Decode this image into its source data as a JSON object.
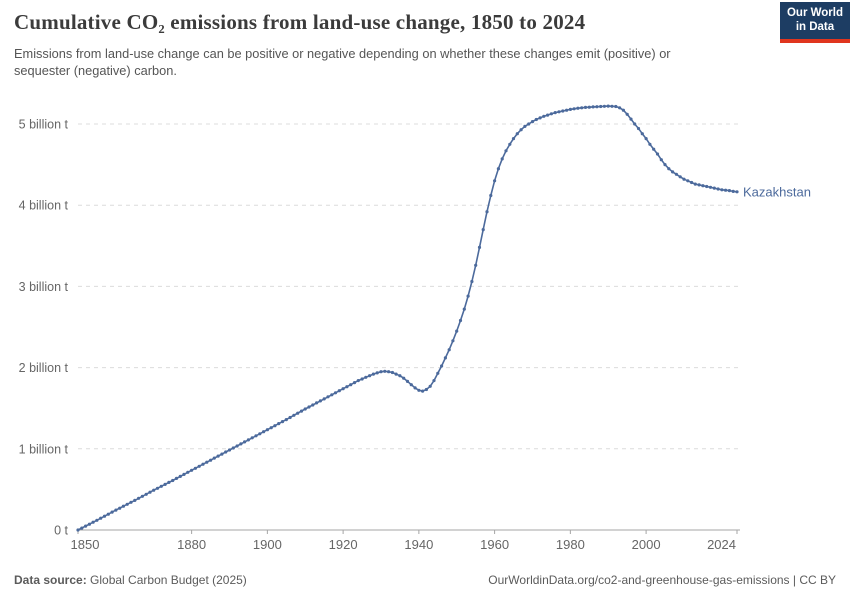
{
  "header": {
    "title": "Cumulative CO₂ emissions from land-use change, 1850 to 2024",
    "subtitle": "Emissions from land-use change can be positive or negative depending on whether these changes emit (positive) or sequester (negative) carbon."
  },
  "logo": {
    "line1": "Our World",
    "line2": "in Data",
    "bg_color": "#1d3d63",
    "stripe_color": "#e0351e"
  },
  "footer": {
    "source_label": "Data source:",
    "source_value": " Global Carbon Budget (2025)",
    "credit": "OurWorldinData.org/co2-and-greenhouse-gas-emissions | CC BY"
  },
  "chart_data": {
    "type": "line",
    "title": "Cumulative CO₂ emissions from land-use change, 1850 to 2024",
    "xlabel": "",
    "ylabel": "",
    "unit": "billion t",
    "grid": "horizontal-dashed",
    "legend_position": "end-of-line",
    "xlim": [
      1850,
      2024
    ],
    "ylim": [
      0,
      5.45
    ],
    "x_ticks": [
      1850,
      1880,
      1900,
      1920,
      1940,
      1960,
      1980,
      2000,
      2024
    ],
    "y_ticks": [
      {
        "value": 0,
        "label": "0 t"
      },
      {
        "value": 1,
        "label": "1 billion t"
      },
      {
        "value": 2,
        "label": "2 billion t"
      },
      {
        "value": 3,
        "label": "3 billion t"
      },
      {
        "value": 4,
        "label": "4 billion t"
      },
      {
        "value": 5,
        "label": "5 billion t"
      }
    ],
    "colors": {
      "line": "#4C6A9C",
      "gridline": "#dcdcdc",
      "axis": "#a5a5a5",
      "tick_text": "#666666"
    },
    "series": [
      {
        "name": "Kazakhstan",
        "color": "#4C6A9C",
        "points_unit": "billion tonnes CO₂",
        "points": [
          [
            1850,
            0.0
          ],
          [
            1855,
            0.12
          ],
          [
            1860,
            0.245
          ],
          [
            1865,
            0.365
          ],
          [
            1870,
            0.49
          ],
          [
            1875,
            0.61
          ],
          [
            1880,
            0.735
          ],
          [
            1885,
            0.86
          ],
          [
            1890,
            0.985
          ],
          [
            1895,
            1.11
          ],
          [
            1900,
            1.235
          ],
          [
            1905,
            1.36
          ],
          [
            1910,
            1.49
          ],
          [
            1915,
            1.615
          ],
          [
            1920,
            1.74
          ],
          [
            1922,
            1.79
          ],
          [
            1924,
            1.84
          ],
          [
            1926,
            1.88
          ],
          [
            1928,
            1.92
          ],
          [
            1930,
            1.95
          ],
          [
            1931,
            1.955
          ],
          [
            1932,
            1.95
          ],
          [
            1933,
            1.94
          ],
          [
            1934,
            1.92
          ],
          [
            1935,
            1.9
          ],
          [
            1936,
            1.87
          ],
          [
            1937,
            1.83
          ],
          [
            1938,
            1.79
          ],
          [
            1939,
            1.75
          ],
          [
            1940,
            1.72
          ],
          [
            1941,
            1.71
          ],
          [
            1942,
            1.73
          ],
          [
            1943,
            1.77
          ],
          [
            1944,
            1.84
          ],
          [
            1945,
            1.93
          ],
          [
            1946,
            2.02
          ],
          [
            1947,
            2.12
          ],
          [
            1948,
            2.22
          ],
          [
            1949,
            2.33
          ],
          [
            1950,
            2.45
          ],
          [
            1951,
            2.58
          ],
          [
            1952,
            2.72
          ],
          [
            1953,
            2.88
          ],
          [
            1954,
            3.06
          ],
          [
            1955,
            3.26
          ],
          [
            1956,
            3.48
          ],
          [
            1957,
            3.7
          ],
          [
            1958,
            3.92
          ],
          [
            1959,
            4.12
          ],
          [
            1960,
            4.3
          ],
          [
            1961,
            4.45
          ],
          [
            1962,
            4.57
          ],
          [
            1963,
            4.67
          ],
          [
            1964,
            4.75
          ],
          [
            1965,
            4.82
          ],
          [
            1966,
            4.88
          ],
          [
            1967,
            4.93
          ],
          [
            1968,
            4.97
          ],
          [
            1969,
            5.0
          ],
          [
            1970,
            5.03
          ],
          [
            1971,
            5.055
          ],
          [
            1972,
            5.075
          ],
          [
            1973,
            5.095
          ],
          [
            1974,
            5.11
          ],
          [
            1975,
            5.125
          ],
          [
            1976,
            5.14
          ],
          [
            1977,
            5.15
          ],
          [
            1978,
            5.16
          ],
          [
            1979,
            5.17
          ],
          [
            1980,
            5.18
          ],
          [
            1982,
            5.195
          ],
          [
            1984,
            5.205
          ],
          [
            1986,
            5.21
          ],
          [
            1988,
            5.215
          ],
          [
            1990,
            5.22
          ],
          [
            1992,
            5.215
          ],
          [
            1993,
            5.2
          ],
          [
            1994,
            5.17
          ],
          [
            1995,
            5.12
          ],
          [
            1996,
            5.06
          ],
          [
            1997,
            5.0
          ],
          [
            1998,
            4.945
          ],
          [
            1999,
            4.88
          ],
          [
            2000,
            4.82
          ],
          [
            2001,
            4.75
          ],
          [
            2002,
            4.69
          ],
          [
            2003,
            4.63
          ],
          [
            2004,
            4.56
          ],
          [
            2005,
            4.5
          ],
          [
            2006,
            4.45
          ],
          [
            2007,
            4.41
          ],
          [
            2008,
            4.38
          ],
          [
            2009,
            4.35
          ],
          [
            2010,
            4.32
          ],
          [
            2011,
            4.3
          ],
          [
            2012,
            4.28
          ],
          [
            2013,
            4.26
          ],
          [
            2014,
            4.25
          ],
          [
            2015,
            4.24
          ],
          [
            2016,
            4.23
          ],
          [
            2017,
            4.22
          ],
          [
            2018,
            4.21
          ],
          [
            2019,
            4.2
          ],
          [
            2020,
            4.19
          ],
          [
            2021,
            4.185
          ],
          [
            2022,
            4.18
          ],
          [
            2023,
            4.17
          ],
          [
            2024,
            4.165
          ]
        ]
      }
    ]
  }
}
